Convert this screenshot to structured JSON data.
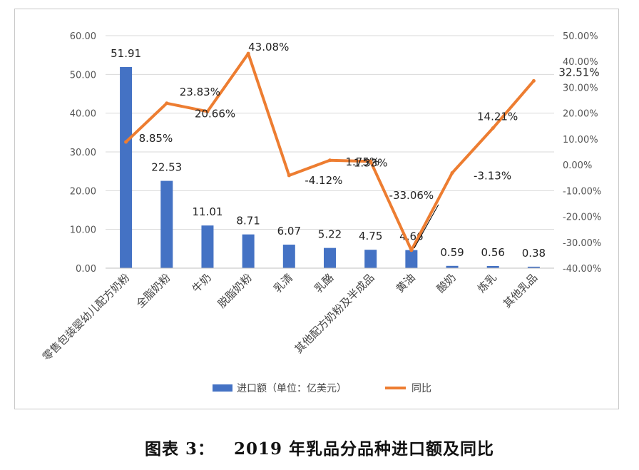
{
  "caption": "图表 3：   2019 年乳品分品种进口额及同比",
  "chart_data": {
    "type": "bar+line",
    "categories": [
      "零售包装婴幼儿配方奶粉",
      "全脂奶粉",
      "牛奶",
      "脱脂奶粉",
      "乳清",
      "乳酪",
      "其他配方奶粉及半成品",
      "黄油",
      "酸奶",
      "炼乳",
      "其他乳品"
    ],
    "series": [
      {
        "name": "进口额（单位：亿美元）",
        "type": "bar",
        "axis": "left",
        "color": "#4472C4",
        "values": [
          51.91,
          22.53,
          11.01,
          8.71,
          6.07,
          5.22,
          4.75,
          4.66,
          0.59,
          0.56,
          0.38
        ],
        "labels": [
          "51.91",
          "22.53",
          "11.01",
          "8.71",
          "6.07",
          "5.22",
          "4.75",
          "4.66",
          "0.59",
          "0.56",
          "0.38"
        ]
      },
      {
        "name": "同比",
        "type": "line",
        "axis": "right",
        "color": "#ED7D31",
        "values": [
          8.85,
          23.83,
          20.66,
          43.08,
          -4.12,
          1.75,
          1.33,
          -33.06,
          -3.13,
          14.21,
          32.51
        ],
        "labels": [
          "8.85%",
          "23.83%",
          "20.66%",
          "43.08%",
          "-4.12%",
          "1.75%",
          "1.33%",
          "-33.06%",
          "-3.13%",
          "14.21%",
          "32.51%"
        ]
      }
    ],
    "y_left": {
      "min": 0,
      "max": 60,
      "ticks": [
        "0.00",
        "10.00",
        "20.00",
        "30.00",
        "40.00",
        "50.00",
        "60.00"
      ]
    },
    "y_right": {
      "min": -40,
      "max": 50,
      "ticks": [
        "-40.00%",
        "-30.00%",
        "-20.00%",
        "-10.00%",
        "0.00%",
        "10.00%",
        "20.00%",
        "30.00%",
        "40.00%",
        "50.00%"
      ]
    },
    "grid": true,
    "legend": "bottom"
  }
}
